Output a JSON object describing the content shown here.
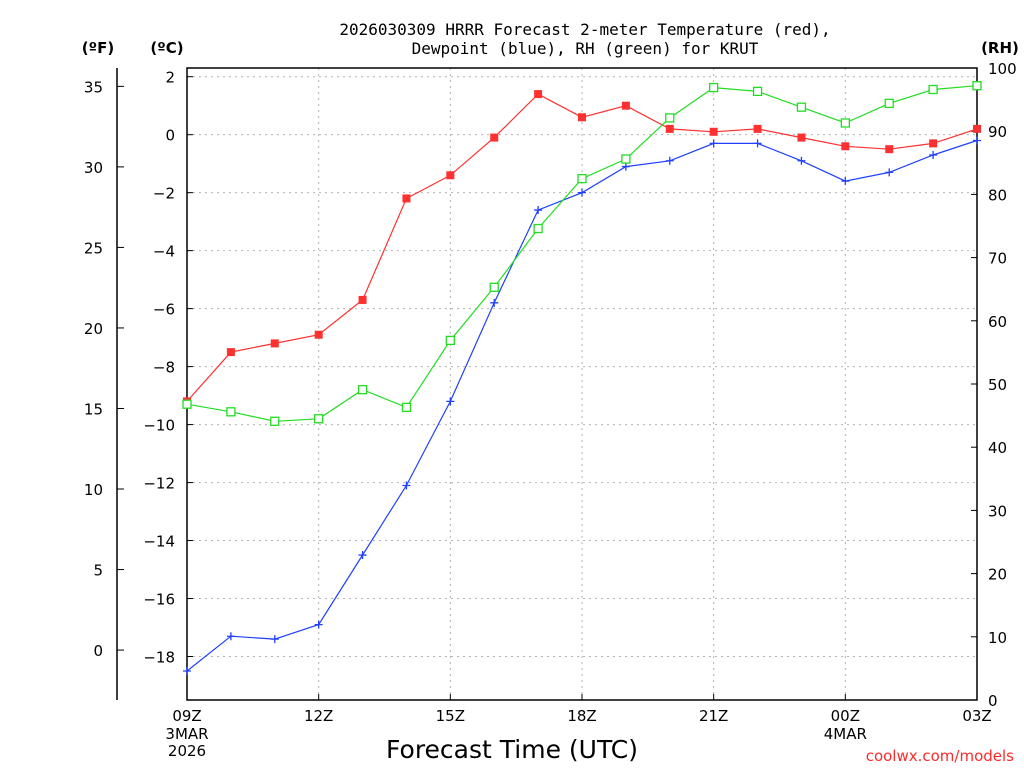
{
  "chart_data": {
    "type": "line",
    "title_line1": "2026030309 HRRR Forecast 2-meter Temperature (red),",
    "title_line2": "Dewpoint (blue), RH (green) for KRUT",
    "xlabel": "Forecast Time (UTC)",
    "credit": "coolwx.com/models",
    "unit_f": "(ºF)",
    "unit_c": "(ºC)",
    "unit_rh": "(RH)",
    "x_ticks": [
      {
        "hour": 0,
        "label": "09Z",
        "sub1": "3MAR",
        "sub2": "2026"
      },
      {
        "hour": 3,
        "label": "12Z",
        "sub1": "",
        "sub2": ""
      },
      {
        "hour": 6,
        "label": "15Z",
        "sub1": "",
        "sub2": ""
      },
      {
        "hour": 9,
        "label": "18Z",
        "sub1": "",
        "sub2": ""
      },
      {
        "hour": 12,
        "label": "21Z",
        "sub1": "",
        "sub2": ""
      },
      {
        "hour": 15,
        "label": "00Z",
        "sub1": "4MAR",
        "sub2": ""
      },
      {
        "hour": 18,
        "label": "03Z",
        "sub1": "",
        "sub2": ""
      }
    ],
    "c_ticks": [
      2,
      0,
      -2,
      -4,
      -6,
      -8,
      -10,
      -12,
      -14,
      -16,
      -18
    ],
    "c_range": [
      -19.5,
      2.3
    ],
    "f_ticks": [
      35,
      30,
      25,
      20,
      15,
      10,
      5,
      0
    ],
    "rh_ticks": [
      0,
      10,
      20,
      30,
      40,
      50,
      60,
      70,
      80,
      90,
      100
    ],
    "rh_range": [
      0,
      100
    ],
    "hours": [
      0,
      1,
      2,
      3,
      4,
      5,
      6,
      7,
      8,
      9,
      10,
      11,
      12,
      13,
      14,
      15,
      16,
      17,
      18
    ],
    "series": [
      {
        "name": "2-meter Temperature",
        "color": "#ff3030",
        "marker": "filled-square",
        "unit": "C",
        "values": [
          -9.2,
          -7.5,
          -7.2,
          -6.9,
          -5.7,
          -2.2,
          -1.4,
          -0.1,
          1.4,
          0.6,
          1.0,
          0.2,
          0.1,
          0.2,
          -0.1,
          -0.4,
          -0.5,
          -0.3,
          0.2
        ]
      },
      {
        "name": "Dewpoint",
        "color": "#2040ff",
        "marker": "plus",
        "unit": "C",
        "values": [
          -18.5,
          -17.3,
          -17.4,
          -16.9,
          -14.5,
          -12.1,
          -9.2,
          -5.8,
          -2.6,
          -2.0,
          -1.1,
          -0.9,
          -0.3,
          -0.3,
          -0.9,
          -1.6,
          -1.3,
          -0.7,
          -0.2
        ]
      },
      {
        "name": "RH",
        "color": "#22dd22",
        "marker": "open-square",
        "unit": "%",
        "values": [
          46.8,
          45.6,
          44.1,
          44.5,
          49.1,
          46.3,
          56.9,
          65.3,
          74.6,
          82.5,
          85.6,
          92.1,
          96.9,
          96.3,
          93.8,
          91.3,
          94.4,
          96.6,
          97.2
        ]
      }
    ]
  }
}
